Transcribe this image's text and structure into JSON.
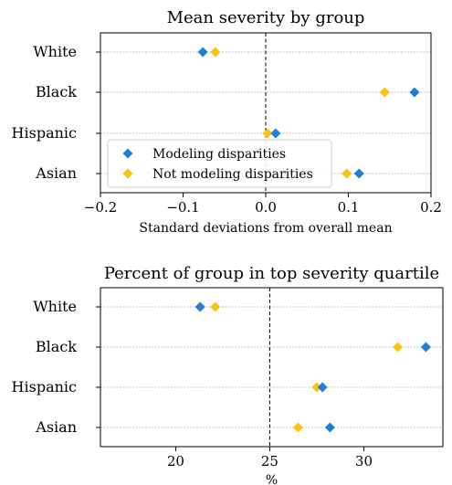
{
  "colors": {
    "modeling": "#1f7fd6",
    "not_modeling": "#ffc20e"
  },
  "chart_data": [
    {
      "type": "scatter",
      "title": "Mean severity by group",
      "xlabel": "Standard deviations from overall mean",
      "ylabel": "",
      "categories": [
        "White",
        "Black",
        "Hispanic",
        "Asian"
      ],
      "xlim": [
        -0.2,
        0.2
      ],
      "xticks": [
        -0.2,
        -0.1,
        0.0,
        0.1,
        0.2
      ],
      "xtick_labels": [
        "−0.2",
        "−0.1",
        "0.0",
        "0.1",
        "0.2"
      ],
      "reference_line": 0.0,
      "grid": "horizontal dotted",
      "legend": "lower-left",
      "series": [
        {
          "name": "Modeling disparities",
          "key": "modeling",
          "values": [
            -0.076,
            0.18,
            0.012,
            0.113
          ]
        },
        {
          "name": "Not modeling disparities",
          "key": "not_modeling",
          "values": [
            -0.061,
            0.144,
            0.002,
            0.098
          ]
        }
      ]
    },
    {
      "type": "scatter",
      "title": "Percent of group in top severity quartile",
      "xlabel": "%",
      "ylabel": "",
      "categories": [
        "White",
        "Black",
        "Hispanic",
        "Asian"
      ],
      "xlim": [
        16,
        34.2
      ],
      "xticks": [
        20,
        25,
        30
      ],
      "xtick_labels": [
        "20",
        "25",
        "30"
      ],
      "reference_line": 25,
      "grid": "horizontal dotted",
      "legend": "none",
      "series": [
        {
          "name": "Modeling disparities",
          "key": "modeling",
          "values": [
            21.3,
            33.3,
            27.8,
            28.2
          ]
        },
        {
          "name": "Not modeling disparities",
          "key": "not_modeling",
          "values": [
            22.1,
            31.8,
            27.5,
            26.5
          ]
        }
      ]
    }
  ]
}
